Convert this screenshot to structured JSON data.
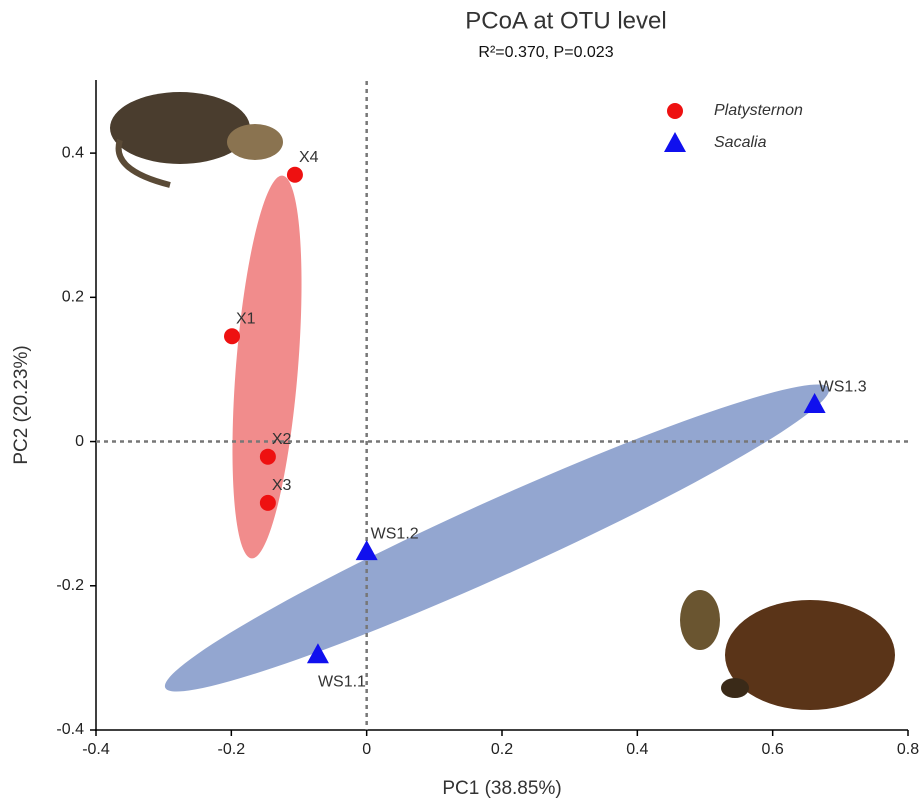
{
  "chart_data": {
    "type": "scatter",
    "title": "PCoA at OTU level",
    "subtitle": "R²=0.370, P=0.023",
    "x_label": "PC1 (38.85%)",
    "y_label": "PC2 (20.23%)",
    "xlim": [
      -0.4,
      0.8
    ],
    "xticks": [
      -0.4,
      -0.2,
      0,
      0.2,
      0.4,
      0.6,
      0.8
    ],
    "ylim": [
      -0.4,
      0.5
    ],
    "yticks": [
      -0.4,
      -0.2,
      0,
      0.2,
      0.4
    ],
    "legend_position": "upper right",
    "series": [
      {
        "name": "Platysternon",
        "color": "#ee1111",
        "marker": "circle",
        "labels": [
          "X4",
          "X1",
          "X2",
          "X3"
        ],
        "x": [
          -0.106,
          -0.199,
          -0.146,
          -0.146
        ],
        "values": [
          0.37,
          0.146,
          -0.021,
          -0.085
        ]
      },
      {
        "name": "Sacalia",
        "color": "#1010ee",
        "marker": "triangle",
        "labels": [
          "WS1.2",
          "WS1.1",
          "WS1.3"
        ],
        "x": [
          0.0,
          -0.072,
          0.662
        ],
        "values": [
          -0.152,
          -0.295,
          0.052
        ]
      }
    ]
  }
}
